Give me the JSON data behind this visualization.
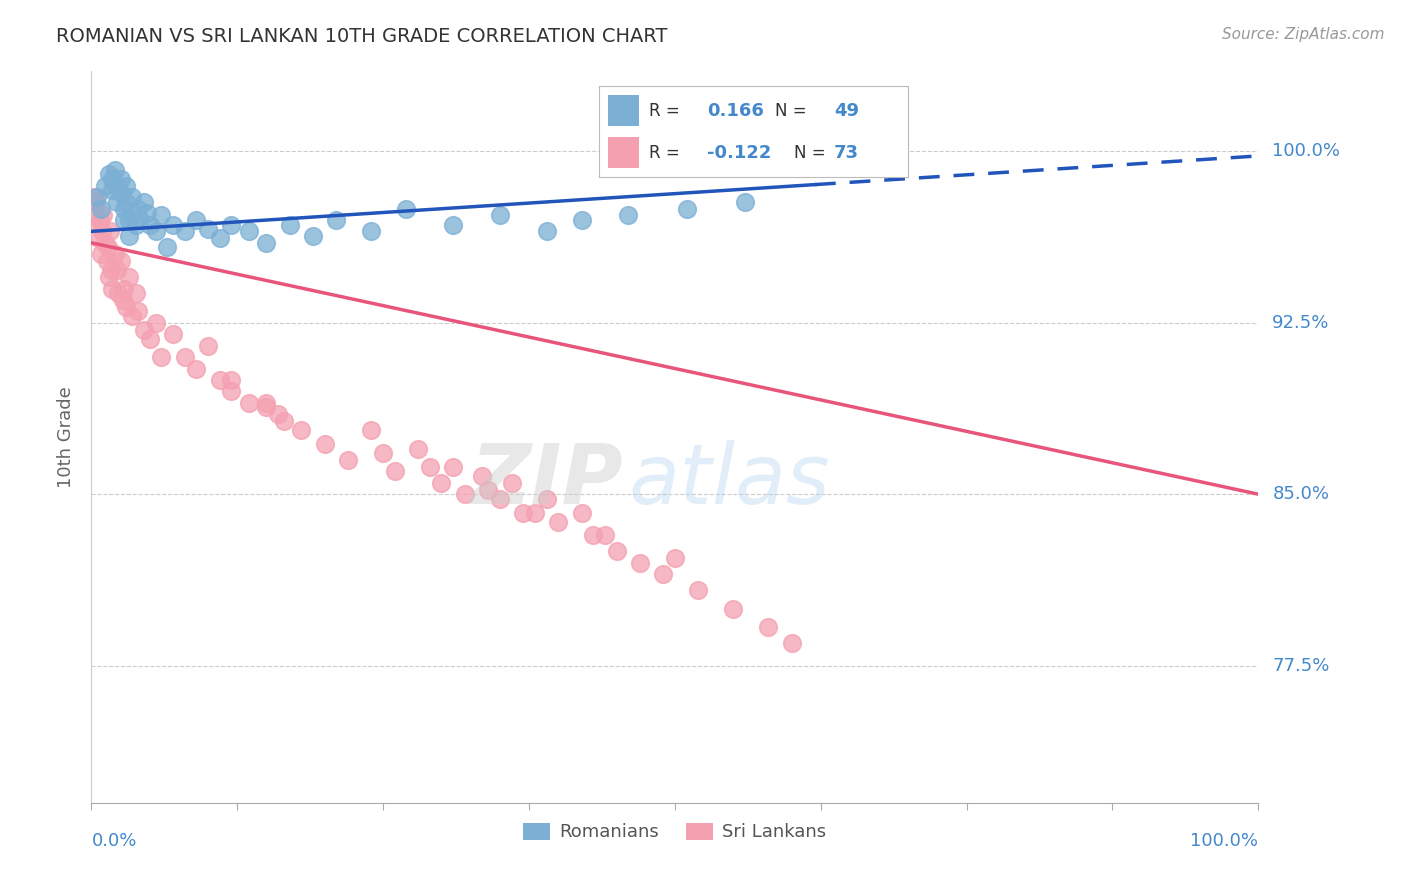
{
  "title": "ROMANIAN VS SRI LANKAN 10TH GRADE CORRELATION CHART",
  "source": "Source: ZipAtlas.com",
  "ylabel": "10th Grade",
  "y_ticks": [
    0.775,
    0.85,
    0.925,
    1.0
  ],
  "y_tick_labels": [
    "77.5%",
    "85.0%",
    "92.5%",
    "100.0%"
  ],
  "xlim": [
    0.0,
    1.0
  ],
  "ylim": [
    0.715,
    1.035
  ],
  "legend_romanian_R": "0.166",
  "legend_romanian_N": "49",
  "legend_srilankan_R": "-0.122",
  "legend_srilankan_N": "73",
  "romanian_color": "#7BAFD4",
  "srilankan_color": "#F4A0B0",
  "trendline_romanian_color": "#2255BB",
  "trendline_srilankan_color": "#E8557A",
  "watermark_zip": "ZIP",
  "watermark_atlas": "atlas",
  "rom_trend_x0": 0.0,
  "rom_trend_y0": 0.965,
  "rom_trend_x1": 1.0,
  "rom_trend_y1": 0.998,
  "rom_trend_solid_end": 0.62,
  "sl_trend_x0": 0.0,
  "sl_trend_y0": 0.96,
  "sl_trend_x1": 1.0,
  "sl_trend_y1": 0.85,
  "romanian_x": [
    0.005,
    0.008,
    0.012,
    0.015,
    0.018,
    0.018,
    0.02,
    0.022,
    0.022,
    0.025,
    0.025,
    0.028,
    0.028,
    0.03,
    0.03,
    0.032,
    0.032,
    0.035,
    0.035,
    0.038,
    0.04,
    0.042,
    0.045,
    0.048,
    0.05,
    0.055,
    0.06,
    0.065,
    0.07,
    0.08,
    0.09,
    0.1,
    0.11,
    0.12,
    0.135,
    0.15,
    0.17,
    0.19,
    0.21,
    0.24,
    0.27,
    0.31,
    0.35,
    0.39,
    0.42,
    0.46,
    0.51,
    0.56,
    0.62
  ],
  "romanian_y": [
    0.98,
    0.975,
    0.985,
    0.99,
    0.988,
    0.983,
    0.992,
    0.985,
    0.978,
    0.988,
    0.982,
    0.975,
    0.97,
    0.985,
    0.978,
    0.97,
    0.963,
    0.98,
    0.972,
    0.968,
    0.975,
    0.97,
    0.978,
    0.973,
    0.968,
    0.965,
    0.972,
    0.958,
    0.968,
    0.965,
    0.97,
    0.966,
    0.962,
    0.968,
    0.965,
    0.96,
    0.968,
    0.963,
    0.97,
    0.965,
    0.975,
    0.968,
    0.972,
    0.965,
    0.97,
    0.972,
    0.975,
    0.978,
    0.999
  ],
  "srilankan_x": [
    0.002,
    0.003,
    0.004,
    0.005,
    0.006,
    0.007,
    0.008,
    0.009,
    0.01,
    0.012,
    0.013,
    0.014,
    0.015,
    0.016,
    0.017,
    0.018,
    0.02,
    0.022,
    0.023,
    0.025,
    0.027,
    0.028,
    0.03,
    0.032,
    0.035,
    0.038,
    0.04,
    0.045,
    0.05,
    0.055,
    0.06,
    0.07,
    0.08,
    0.09,
    0.1,
    0.11,
    0.12,
    0.135,
    0.15,
    0.165,
    0.18,
    0.2,
    0.22,
    0.24,
    0.26,
    0.28,
    0.3,
    0.31,
    0.32,
    0.335,
    0.35,
    0.36,
    0.37,
    0.39,
    0.4,
    0.42,
    0.43,
    0.45,
    0.47,
    0.49,
    0.52,
    0.55,
    0.58,
    0.6,
    0.12,
    0.15,
    0.16,
    0.25,
    0.29,
    0.34,
    0.38,
    0.44,
    0.5
  ],
  "srilankan_y": [
    0.98,
    0.972,
    0.978,
    0.968,
    0.962,
    0.97,
    0.955,
    0.965,
    0.972,
    0.96,
    0.952,
    0.958,
    0.945,
    0.965,
    0.948,
    0.94,
    0.955,
    0.948,
    0.938,
    0.952,
    0.935,
    0.94,
    0.932,
    0.945,
    0.928,
    0.938,
    0.93,
    0.922,
    0.918,
    0.925,
    0.91,
    0.92,
    0.91,
    0.905,
    0.915,
    0.9,
    0.895,
    0.89,
    0.888,
    0.882,
    0.878,
    0.872,
    0.865,
    0.878,
    0.86,
    0.87,
    0.855,
    0.862,
    0.85,
    0.858,
    0.848,
    0.855,
    0.842,
    0.848,
    0.838,
    0.842,
    0.832,
    0.825,
    0.82,
    0.815,
    0.808,
    0.8,
    0.792,
    0.785,
    0.9,
    0.89,
    0.885,
    0.868,
    0.862,
    0.852,
    0.842,
    0.832,
    0.822
  ]
}
